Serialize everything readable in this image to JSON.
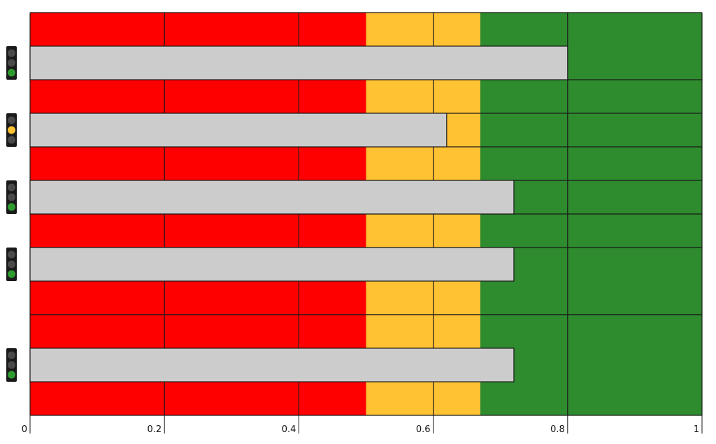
{
  "chart_data": {
    "type": "bar",
    "orientation": "horizontal",
    "categories": [
      "",
      "",
      "",
      "",
      ""
    ],
    "values": [
      0.8,
      0.62,
      0.72,
      0.72,
      0.72
    ],
    "status": [
      "green",
      "amber",
      "green",
      "green",
      "green"
    ],
    "xlim": [
      0,
      1
    ],
    "x_ticks": [
      {
        "value": 0,
        "label": "0"
      },
      {
        "value": 0.2,
        "label": "0.2"
      },
      {
        "value": 0.4,
        "label": "0.4"
      },
      {
        "value": 0.6,
        "label": "0.6"
      },
      {
        "value": 0.8,
        "label": "0.8"
      },
      {
        "value": 1,
        "label": "1"
      }
    ],
    "bands": [
      {
        "from": 0,
        "to": 0.5,
        "color": "#ff0000"
      },
      {
        "from": 0.5,
        "to": 0.67,
        "color": "#ffc233"
      },
      {
        "from": 0.67,
        "to": 1,
        "color": "#2e8b2e"
      }
    ],
    "grid": true,
    "legend": "none",
    "title": "",
    "xlabel": "",
    "ylabel": ""
  },
  "colors": {
    "bar": "#cccccc",
    "gridline": "#1a1a1a",
    "light_housing": "#1a1a1a",
    "light_off": "#4a4a4a",
    "light_red": "#ff0000",
    "light_amber": "#ffc233",
    "light_green": "#2e9b2e"
  }
}
